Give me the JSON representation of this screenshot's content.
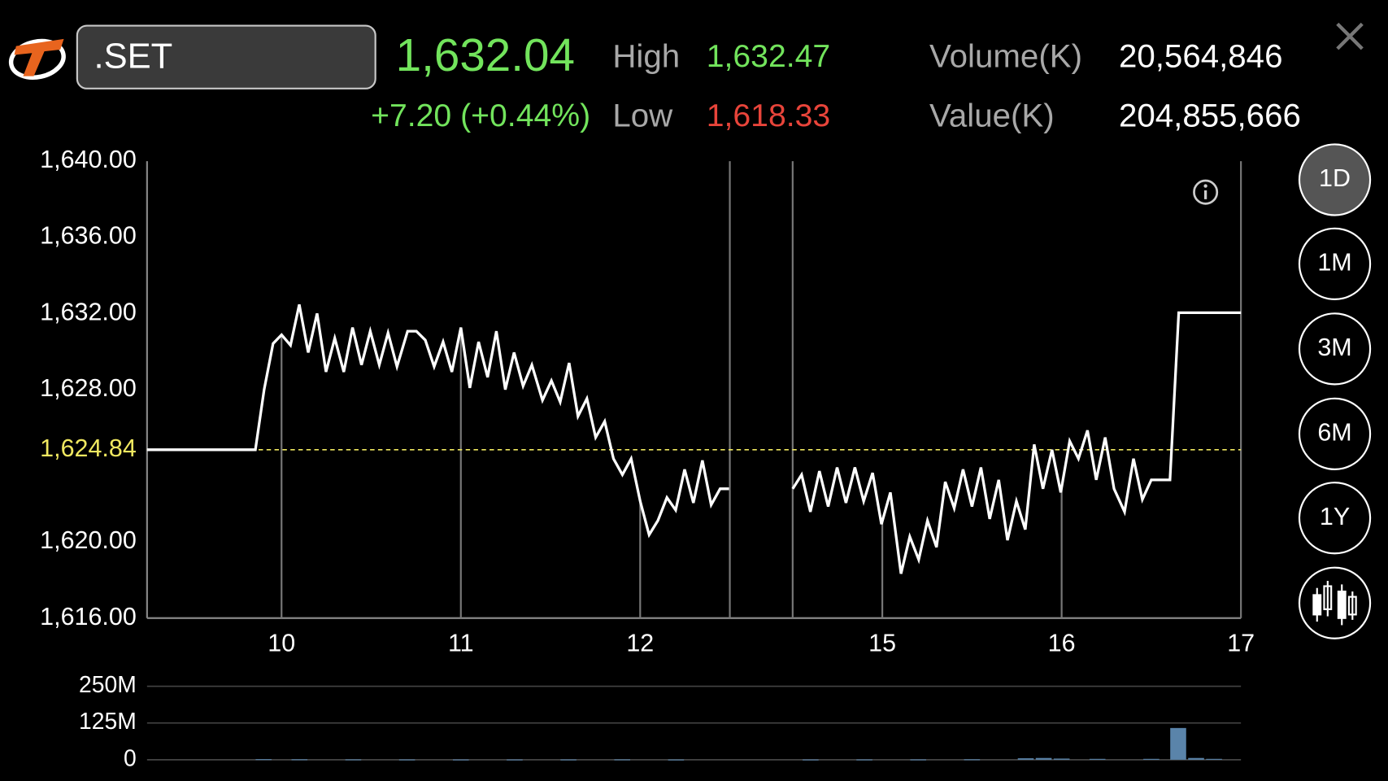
{
  "header": {
    "symbol": ".SET",
    "last": "1,632.04",
    "change": "+7.20 (+0.44%)",
    "high_label": "High",
    "high": "1,632.47",
    "low_label": "Low",
    "low": "1,618.33",
    "volume_label": "Volume(K)",
    "volume": "20,564,846",
    "value_label": "Value(K)",
    "value": "204,855,666"
  },
  "periods": [
    "1D",
    "1M",
    "3M",
    "6M",
    "1Y"
  ],
  "selected_period": "1D",
  "chart_data": [
    {
      "type": "line",
      "color": "#ffffff",
      "xlim": [
        9.25,
        17
      ],
      "x_break": [
        12.5,
        14.5
      ],
      "xticks": [
        10,
        11,
        12,
        15,
        16,
        17
      ],
      "ylim": [
        1616,
        1640
      ],
      "yticks": [
        {
          "value": 1640,
          "label": "1,640.00"
        },
        {
          "value": 1636,
          "label": "1,636.00"
        },
        {
          "value": 1632,
          "label": "1,632.00"
        },
        {
          "value": 1628,
          "label": "1,628.00"
        },
        {
          "value": 1620,
          "label": "1,620.00"
        },
        {
          "value": 1616,
          "label": "1,616.00"
        }
      ],
      "reference": {
        "value": 1624.84,
        "label": "1,624.84",
        "color": "#f0e860"
      },
      "x": [
        9.25,
        9.854,
        9.903,
        9.953,
        10.0,
        10.05,
        10.099,
        10.149,
        10.198,
        10.248,
        10.297,
        10.347,
        10.396,
        10.446,
        10.495,
        10.545,
        10.594,
        10.644,
        10.703,
        10.752,
        10.802,
        10.851,
        10.901,
        10.95,
        11.0,
        11.05,
        11.099,
        11.149,
        11.198,
        11.248,
        11.297,
        11.347,
        11.396,
        11.455,
        11.505,
        11.554,
        11.604,
        11.653,
        11.703,
        11.752,
        11.802,
        11.851,
        11.901,
        11.95,
        12.0,
        12.05,
        12.099,
        12.149,
        12.198,
        12.248,
        12.297,
        12.347,
        12.396,
        12.446,
        12.495,
        null,
        14.5,
        14.55,
        14.599,
        14.649,
        14.698,
        14.748,
        14.797,
        14.847,
        14.896,
        14.946,
        14.995,
        15.045,
        15.104,
        15.153,
        15.203,
        15.252,
        15.302,
        15.351,
        15.401,
        15.45,
        15.5,
        15.55,
        15.599,
        15.649,
        15.698,
        15.748,
        15.797,
        15.847,
        15.896,
        15.946,
        15.995,
        16.045,
        16.094,
        16.144,
        16.193,
        16.243,
        16.292,
        16.351,
        16.401,
        16.45,
        16.5,
        16.604,
        16.653,
        17.0
      ],
      "values": [
        1624.84,
        1624.84,
        1628.0,
        1630.42,
        1630.88,
        1630.33,
        1632.47,
        1629.95,
        1632.0,
        1628.93,
        1630.7,
        1628.93,
        1631.26,
        1629.3,
        1631.07,
        1629.3,
        1630.98,
        1629.21,
        1631.07,
        1631.07,
        1630.6,
        1629.21,
        1630.51,
        1628.93,
        1631.26,
        1628.09,
        1630.51,
        1628.65,
        1631.07,
        1628.0,
        1629.95,
        1628.19,
        1629.3,
        1627.44,
        1628.47,
        1627.35,
        1629.4,
        1626.6,
        1627.53,
        1625.49,
        1626.33,
        1624.37,
        1623.53,
        1624.37,
        1622.14,
        1620.37,
        1621.12,
        1622.33,
        1621.67,
        1623.81,
        1622.05,
        1624.28,
        1621.95,
        1622.79,
        1622.79,
        null,
        1622.79,
        1623.53,
        1621.58,
        1623.72,
        1621.86,
        1623.91,
        1622.05,
        1623.91,
        1622.14,
        1623.63,
        1620.93,
        1622.6,
        1618.33,
        1620.28,
        1619.07,
        1621.12,
        1619.72,
        1623.16,
        1621.77,
        1623.81,
        1621.86,
        1623.91,
        1621.21,
        1623.26,
        1620.09,
        1622.14,
        1620.65,
        1625.12,
        1622.79,
        1624.84,
        1622.6,
        1625.3,
        1624.37,
        1625.86,
        1623.26,
        1625.49,
        1622.79,
        1621.58,
        1624.37,
        1622.23,
        1623.26,
        1623.26,
        1632.04,
        1632.04
      ]
    },
    {
      "type": "bar",
      "color": "#5a84aa",
      "xlim": [
        9.25,
        17
      ],
      "x_break": [
        12.5,
        14.5
      ],
      "ylim": [
        0,
        250000000
      ],
      "yticks": [
        {
          "value": 250000000,
          "label": "250M"
        },
        {
          "value": 125000000,
          "label": "125M"
        },
        0
      ],
      "x": [
        9.9,
        10.1,
        10.4,
        10.7,
        11.0,
        11.3,
        11.6,
        11.9,
        12.2,
        14.6,
        14.9,
        15.2,
        15.5,
        15.8,
        15.9,
        16.0,
        16.2,
        16.5,
        16.65,
        16.75,
        16.85
      ],
      "values": [
        2000000,
        1500000,
        1200000,
        1000000,
        900000,
        900000,
        1000000,
        1200000,
        800000,
        900000,
        1000000,
        1100000,
        1500000,
        5000000,
        6000000,
        4000000,
        3000000,
        3000000,
        108000000,
        6000000,
        3000000
      ]
    }
  ]
}
